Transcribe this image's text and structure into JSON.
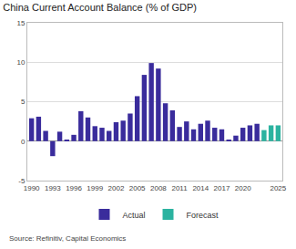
{
  "chart_data": {
    "type": "bar",
    "title": "China Current Account Balance (% of GDP)",
    "source": "Source: Refinitiv, Capital Economics",
    "x": [
      1990,
      1991,
      1992,
      1993,
      1994,
      1995,
      1996,
      1997,
      1998,
      1999,
      2000,
      2001,
      2002,
      2003,
      2004,
      2005,
      2006,
      2007,
      2008,
      2009,
      2010,
      2011,
      2012,
      2013,
      2014,
      2015,
      2016,
      2017,
      2018,
      2019,
      2020,
      2021,
      2022,
      2023,
      2024,
      2025
    ],
    "series": [
      {
        "name": "Actual",
        "color": "#3a2c9c",
        "values": [
          2.9,
          3.1,
          1.3,
          -1.9,
          1.2,
          0.2,
          0.8,
          3.8,
          3.0,
          1.9,
          1.7,
          1.3,
          2.4,
          2.6,
          3.5,
          5.7,
          8.4,
          9.9,
          9.2,
          4.8,
          3.9,
          1.8,
          2.5,
          1.5,
          2.2,
          2.6,
          1.7,
          1.5,
          0.2,
          0.7,
          1.7,
          2.0,
          2.2,
          null,
          null,
          null
        ]
      },
      {
        "name": "Forecast",
        "color": "#2bb3a0",
        "values": [
          null,
          null,
          null,
          null,
          null,
          null,
          null,
          null,
          null,
          null,
          null,
          null,
          null,
          null,
          null,
          null,
          null,
          null,
          null,
          null,
          null,
          null,
          null,
          null,
          null,
          null,
          null,
          null,
          null,
          null,
          null,
          null,
          null,
          1.4,
          2.0,
          2.0
        ]
      }
    ],
    "xlim": [
      1989.4,
      2025.6
    ],
    "xticks": [
      1990,
      1993,
      1996,
      1999,
      2002,
      2005,
      2008,
      2011,
      2014,
      2017,
      2020,
      2025
    ],
    "ylim": [
      -5,
      15
    ],
    "yticks": [
      -5,
      0,
      5,
      10,
      15
    ],
    "grid": true,
    "legend": "bottom"
  }
}
